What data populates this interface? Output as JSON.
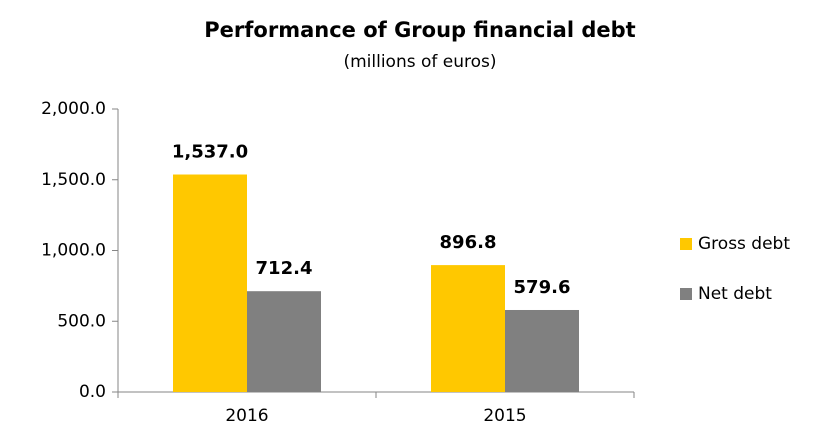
{
  "chart_data": {
    "type": "bar",
    "title": "Performance of Group financial debt",
    "subtitle": "(millions of euros)",
    "categories": [
      "2016",
      "2015"
    ],
    "series": [
      {
        "name": "Gross debt",
        "color": "#ffc800",
        "values": [
          1537.0,
          896.8
        ],
        "value_labels": [
          "1,537.0",
          "896.8"
        ]
      },
      {
        "name": "Net debt",
        "color": "#808080",
        "values": [
          712.4,
          579.6
        ],
        "value_labels": [
          "712.4",
          "579.6"
        ]
      }
    ],
    "ylim": [
      0,
      2000
    ],
    "yticks": [
      {
        "value": 0,
        "label": "0.0"
      },
      {
        "value": 500,
        "label": "500.0"
      },
      {
        "value": 1000,
        "label": "1,000.0"
      },
      {
        "value": 1500,
        "label": "1,500.0"
      },
      {
        "value": 2000,
        "label": "2,000.0"
      }
    ],
    "grid": false,
    "legend": "right"
  }
}
